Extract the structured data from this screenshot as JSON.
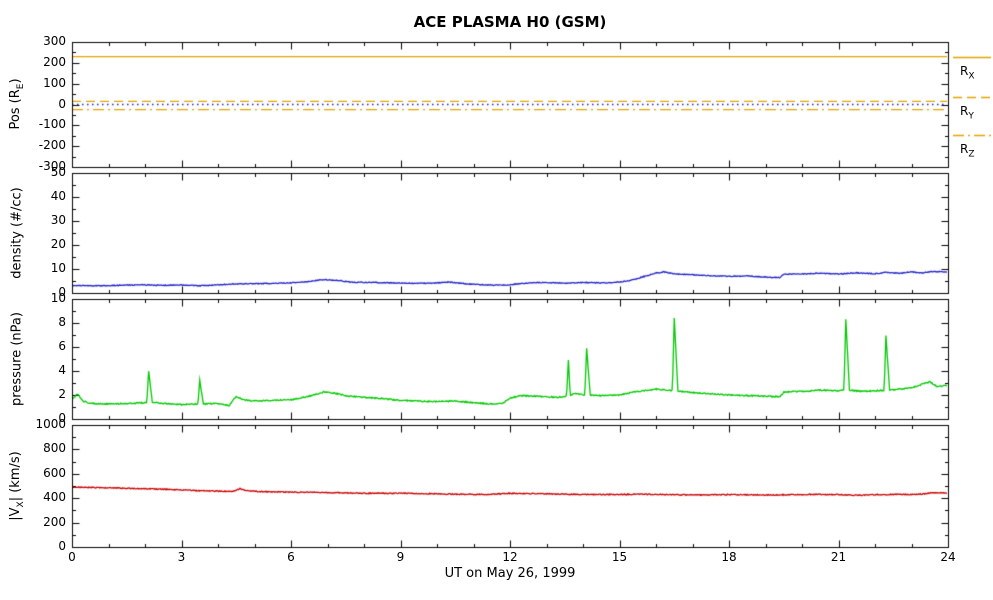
{
  "title": "ACE PLASMA H0 (GSM)",
  "xlabel": "UT on May 26, 1999",
  "axes": {
    "xlim": [
      0,
      24
    ],
    "xticks": [
      0,
      3,
      6,
      9,
      12,
      15,
      18,
      21,
      24
    ],
    "x_minor_step": 1
  },
  "chart_data": [
    {
      "name": "position",
      "type": "line",
      "ylabel": "Pos (R_E)",
      "ylim": [
        -300,
        300
      ],
      "yticks": [
        -300,
        -200,
        -100,
        0,
        100,
        200,
        300
      ],
      "yminor": 50,
      "legend": [
        "R_X",
        "R_Y",
        "R_Z"
      ],
      "series": [
        {
          "name": "R_X",
          "style": "solid",
          "color": "#E2A400",
          "constant": 230
        },
        {
          "name": "R_Y",
          "style": "dash",
          "color": "#E2A400",
          "constant": 15
        },
        {
          "name": "R_Z",
          "style": "dashdot",
          "color": "#E2A400",
          "constant": -25
        },
        {
          "name": "zero-line",
          "style": "dot",
          "color": "#2020C8",
          "constant": 0
        }
      ]
    },
    {
      "name": "density",
      "type": "line",
      "ylabel": "density (#/cc)",
      "ylim": [
        0,
        50
      ],
      "yticks": [
        0,
        10,
        20,
        30,
        40,
        50
      ],
      "yminor": 5,
      "series": [
        {
          "name": "density",
          "style": "solid",
          "color": "#2020C8",
          "noise": 0.35,
          "points": [
            [
              0,
              3.2
            ],
            [
              0.5,
              3.0
            ],
            [
              1,
              3.1
            ],
            [
              1.5,
              3.3
            ],
            [
              2,
              3.4
            ],
            [
              2.5,
              3.2
            ],
            [
              3,
              3.3
            ],
            [
              3.5,
              3.0
            ],
            [
              4,
              3.4
            ],
            [
              4.5,
              3.8
            ],
            [
              5,
              3.9
            ],
            [
              5.5,
              4.0
            ],
            [
              6,
              4.2
            ],
            [
              6.5,
              4.8
            ],
            [
              6.9,
              5.6
            ],
            [
              7.3,
              5.2
            ],
            [
              7.6,
              4.6
            ],
            [
              8,
              4.4
            ],
            [
              8.5,
              4.3
            ],
            [
              9,
              4.2
            ],
            [
              9.5,
              4.0
            ],
            [
              10,
              4.2
            ],
            [
              10.3,
              4.6
            ],
            [
              10.7,
              4.0
            ],
            [
              11,
              3.6
            ],
            [
              11.5,
              3.3
            ],
            [
              12,
              3.4
            ],
            [
              12.3,
              4.0
            ],
            [
              12.7,
              4.3
            ],
            [
              13,
              4.4
            ],
            [
              13.5,
              4.1
            ],
            [
              14,
              4.4
            ],
            [
              14.5,
              4.2
            ],
            [
              15,
              4.6
            ],
            [
              15.3,
              5.2
            ],
            [
              15.7,
              7.0
            ],
            [
              16,
              8.3
            ],
            [
              16.2,
              8.8
            ],
            [
              16.5,
              8.0
            ],
            [
              17,
              7.6
            ],
            [
              17.5,
              7.2
            ],
            [
              18,
              7.0
            ],
            [
              18.5,
              7.1
            ],
            [
              19,
              6.6
            ],
            [
              19.4,
              6.4
            ],
            [
              19.5,
              7.8
            ],
            [
              20,
              7.9
            ],
            [
              20.5,
              8.3
            ],
            [
              21,
              7.9
            ],
            [
              21.5,
              8.4
            ],
            [
              22,
              8.0
            ],
            [
              22.3,
              8.6
            ],
            [
              22.7,
              8.2
            ],
            [
              23,
              8.8
            ],
            [
              23.3,
              8.4
            ],
            [
              23.6,
              9.0
            ],
            [
              24,
              8.7
            ]
          ]
        }
      ]
    },
    {
      "name": "pressure",
      "type": "line",
      "ylabel": "pressure (nPa)",
      "ylim": [
        0,
        10
      ],
      "yticks": [
        0,
        2,
        4,
        6,
        8,
        10
      ],
      "yminor": 1,
      "series": [
        {
          "name": "pressure",
          "style": "solid",
          "color": "#00C800",
          "noise": 0.1,
          "points": [
            [
              0,
              1.6
            ],
            [
              0.15,
              2.1
            ],
            [
              0.3,
              1.5
            ],
            [
              0.5,
              1.3
            ],
            [
              1,
              1.25
            ],
            [
              1.5,
              1.3
            ],
            [
              2,
              1.35
            ],
            [
              2.05,
              1.4
            ],
            [
              2.1,
              4.0
            ],
            [
              2.2,
              1.4
            ],
            [
              2.5,
              1.3
            ],
            [
              3,
              1.2
            ],
            [
              3.45,
              1.25
            ],
            [
              3.5,
              3.2
            ],
            [
              3.6,
              1.25
            ],
            [
              4,
              1.3
            ],
            [
              4.3,
              1.1
            ],
            [
              4.5,
              1.9
            ],
            [
              4.7,
              1.6
            ],
            [
              5,
              1.5
            ],
            [
              5.5,
              1.55
            ],
            [
              6,
              1.6
            ],
            [
              6.5,
              1.9
            ],
            [
              6.9,
              2.25
            ],
            [
              7.2,
              2.15
            ],
            [
              7.6,
              1.9
            ],
            [
              8,
              1.8
            ],
            [
              8.5,
              1.7
            ],
            [
              9,
              1.55
            ],
            [
              9.5,
              1.5
            ],
            [
              10,
              1.45
            ],
            [
              10.5,
              1.5
            ],
            [
              11,
              1.35
            ],
            [
              11.5,
              1.25
            ],
            [
              11.8,
              1.3
            ],
            [
              12,
              1.75
            ],
            [
              12.3,
              1.95
            ],
            [
              12.7,
              1.9
            ],
            [
              13,
              1.85
            ],
            [
              13.3,
              1.8
            ],
            [
              13.55,
              1.9
            ],
            [
              13.6,
              4.9
            ],
            [
              13.65,
              2.0
            ],
            [
              13.8,
              2.1
            ],
            [
              14.05,
              2.0
            ],
            [
              14.1,
              5.9
            ],
            [
              14.2,
              2.0
            ],
            [
              14.5,
              1.95
            ],
            [
              15,
              2.0
            ],
            [
              15.5,
              2.3
            ],
            [
              16,
              2.5
            ],
            [
              16.3,
              2.4
            ],
            [
              16.45,
              2.4
            ],
            [
              16.5,
              8.4
            ],
            [
              16.6,
              2.35
            ],
            [
              17,
              2.2
            ],
            [
              17.5,
              2.1
            ],
            [
              18,
              2.0
            ],
            [
              18.5,
              1.95
            ],
            [
              19,
              1.9
            ],
            [
              19.4,
              1.85
            ],
            [
              19.5,
              2.25
            ],
            [
              20,
              2.3
            ],
            [
              20.5,
              2.4
            ],
            [
              21,
              2.35
            ],
            [
              21.15,
              2.4
            ],
            [
              21.2,
              8.3
            ],
            [
              21.3,
              2.4
            ],
            [
              21.7,
              2.3
            ],
            [
              22,
              2.35
            ],
            [
              22.25,
              2.4
            ],
            [
              22.3,
              6.9
            ],
            [
              22.4,
              2.4
            ],
            [
              22.7,
              2.5
            ],
            [
              23,
              2.6
            ],
            [
              23.3,
              2.9
            ],
            [
              23.5,
              3.1
            ],
            [
              23.7,
              2.7
            ],
            [
              24,
              2.8
            ]
          ]
        }
      ]
    },
    {
      "name": "velocity",
      "type": "line",
      "ylabel": "|V_X| (km/s)",
      "ylim": [
        0,
        1000
      ],
      "yticks": [
        0,
        200,
        400,
        600,
        800,
        1000
      ],
      "yminor": 100,
      "series": [
        {
          "name": "vx-magnitude",
          "style": "solid",
          "color": "#C80000",
          "noise": 8,
          "points": [
            [
              0,
              492
            ],
            [
              0.5,
              488
            ],
            [
              1,
              485
            ],
            [
              1.5,
              482
            ],
            [
              2,
              478
            ],
            [
              2.5,
              474
            ],
            [
              3,
              468
            ],
            [
              3.5,
              462
            ],
            [
              4,
              458
            ],
            [
              4.4,
              455
            ],
            [
              4.6,
              478
            ],
            [
              4.8,
              462
            ],
            [
              5,
              456
            ],
            [
              5.5,
              452
            ],
            [
              6,
              450
            ],
            [
              6.5,
              448
            ],
            [
              7,
              446
            ],
            [
              7.5,
              443
            ],
            [
              8,
              441
            ],
            [
              8.5,
              440
            ],
            [
              9,
              441
            ],
            [
              9.5,
              438
            ],
            [
              10,
              436
            ],
            [
              10.5,
              433
            ],
            [
              11,
              431
            ],
            [
              11.5,
              432
            ],
            [
              12,
              440
            ],
            [
              12.5,
              438
            ],
            [
              13,
              436
            ],
            [
              13.5,
              433
            ],
            [
              14,
              431
            ],
            [
              14.5,
              430
            ],
            [
              15,
              431
            ],
            [
              15.5,
              432
            ],
            [
              16,
              431
            ],
            [
              16.5,
              429
            ],
            [
              17,
              426
            ],
            [
              17.5,
              427
            ],
            [
              18,
              430
            ],
            [
              18.5,
              428
            ],
            [
              19,
              426
            ],
            [
              19.5,
              427
            ],
            [
              20,
              430
            ],
            [
              20.5,
              431
            ],
            [
              21,
              430
            ],
            [
              21.3,
              426
            ],
            [
              21.7,
              424
            ],
            [
              22,
              429
            ],
            [
              22.5,
              430
            ],
            [
              23,
              431
            ],
            [
              23.3,
              434
            ],
            [
              23.6,
              446
            ],
            [
              24,
              441
            ]
          ]
        }
      ]
    }
  ]
}
